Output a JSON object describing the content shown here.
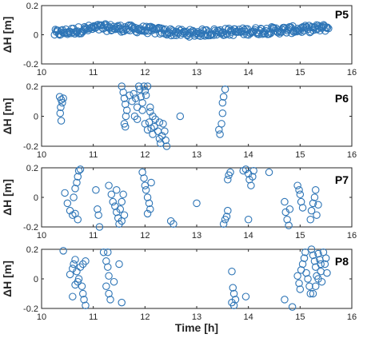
{
  "chart_data": {
    "type": "scatter",
    "xlabel": "Time [h]",
    "marker_color": "#2e75b6",
    "panels": [
      {
        "label": "P5",
        "ylabel": "ΔH [m]",
        "xlim": [
          10,
          16
        ],
        "ylim": [
          -0.2,
          0.2
        ],
        "xticks": [
          "10",
          "11",
          "12",
          "13",
          "14",
          "15",
          "16"
        ],
        "yticks": [
          "-0.2",
          "0",
          "0.2"
        ],
        "trend": [
          [
            10.25,
            0.01
          ],
          [
            10.5,
            0.02
          ],
          [
            10.8,
            0.035
          ],
          [
            11.0,
            0.045
          ],
          [
            11.2,
            0.05
          ],
          [
            11.5,
            0.045
          ],
          [
            11.8,
            0.04
          ],
          [
            12.0,
            0.035
          ],
          [
            12.3,
            0.025
          ],
          [
            12.6,
            0.015
          ],
          [
            12.9,
            0.01
          ],
          [
            13.2,
            0.015
          ],
          [
            13.5,
            0.02
          ],
          [
            13.8,
            0.02
          ],
          [
            14.1,
            0.025
          ],
          [
            14.5,
            0.03
          ],
          [
            14.9,
            0.035
          ],
          [
            15.2,
            0.04
          ],
          [
            15.55,
            0.05
          ]
        ],
        "noise": 0.025,
        "n_points": 320
      },
      {
        "label": "P6",
        "ylabel": "ΔH [m]",
        "xlim": [
          10,
          16
        ],
        "ylim": [
          -0.2,
          0.2
        ],
        "xticks": [
          "10",
          "11",
          "12",
          "13",
          "14",
          "15",
          "16"
        ],
        "yticks": [
          "-0.2",
          "0",
          "0.2"
        ],
        "points": [
          [
            10.35,
            0.13
          ],
          [
            10.38,
            0.11
          ],
          [
            10.4,
            0.09
          ],
          [
            10.37,
            0.06
          ],
          [
            10.36,
            0.02
          ],
          [
            10.38,
            -0.03
          ],
          [
            10.42,
            0.12
          ],
          [
            11.55,
            0.2
          ],
          [
            11.58,
            0.16
          ],
          [
            11.6,
            0.12
          ],
          [
            11.62,
            0.08
          ],
          [
            11.65,
            0.04
          ],
          [
            11.63,
            0.0
          ],
          [
            11.6,
            -0.05
          ],
          [
            11.62,
            -0.07
          ],
          [
            11.7,
            0.14
          ],
          [
            11.75,
            0.1
          ],
          [
            11.78,
            0.15
          ],
          [
            11.82,
            0.12
          ],
          [
            11.85,
            0.06
          ],
          [
            11.88,
            0.2
          ],
          [
            11.9,
            0.18
          ],
          [
            11.92,
            0.13
          ],
          [
            11.95,
            0.09
          ],
          [
            11.98,
            0.2
          ],
          [
            12.0,
            0.17
          ],
          [
            12.02,
            0.14
          ],
          [
            12.05,
            0.2
          ],
          [
            11.8,
            0.0
          ],
          [
            11.85,
            -0.02
          ],
          [
            11.95,
            0.04
          ],
          [
            12.0,
            -0.05
          ],
          [
            12.05,
            -0.09
          ],
          [
            12.08,
            -0.04
          ],
          [
            12.1,
            0.03
          ],
          [
            12.12,
            -0.08
          ],
          [
            12.15,
            -0.12
          ],
          [
            12.18,
            -0.07
          ],
          [
            12.2,
            -0.02
          ],
          [
            12.25,
            -0.1
          ],
          [
            12.28,
            -0.15
          ],
          [
            12.3,
            -0.18
          ],
          [
            12.33,
            -0.13
          ],
          [
            12.35,
            -0.05
          ],
          [
            12.38,
            -0.1
          ],
          [
            12.4,
            -0.16
          ],
          [
            12.42,
            -0.2
          ],
          [
            12.1,
            0.06
          ],
          [
            12.15,
            0.0
          ],
          [
            12.28,
            -0.04
          ],
          [
            12.68,
            0.0
          ],
          [
            13.43,
            -0.09
          ],
          [
            13.45,
            -0.12
          ],
          [
            13.48,
            -0.05
          ],
          [
            13.5,
            0.02
          ],
          [
            13.52,
            0.13
          ],
          [
            13.55,
            0.18
          ],
          [
            13.5,
            0.09
          ]
        ]
      },
      {
        "label": "P7",
        "ylabel": "ΔH [m]",
        "xlim": [
          10,
          16
        ],
        "ylim": [
          -0.2,
          0.2
        ],
        "xticks": [
          "10",
          "11",
          "12",
          "13",
          "14",
          "15",
          "16"
        ],
        "yticks": [
          "-0.2",
          "0",
          "0.2"
        ],
        "points": [
          [
            10.45,
            0.03
          ],
          [
            10.5,
            -0.04
          ],
          [
            10.55,
            -0.09
          ],
          [
            10.6,
            -0.12
          ],
          [
            10.62,
            0.0
          ],
          [
            10.65,
            0.06
          ],
          [
            10.68,
            0.1
          ],
          [
            10.7,
            0.14
          ],
          [
            10.72,
            0.18
          ],
          [
            10.75,
            0.19
          ],
          [
            10.7,
            -0.15
          ],
          [
            10.65,
            -0.11
          ],
          [
            11.05,
            0.05
          ],
          [
            11.08,
            -0.08
          ],
          [
            11.1,
            -0.12
          ],
          [
            11.12,
            -0.2
          ],
          [
            11.3,
            0.08
          ],
          [
            11.35,
            0.02
          ],
          [
            11.38,
            -0.03
          ],
          [
            11.42,
            -0.06
          ],
          [
            11.45,
            -0.1
          ],
          [
            11.48,
            -0.14
          ],
          [
            11.5,
            -0.18
          ],
          [
            11.52,
            -0.08
          ],
          [
            11.55,
            -0.03
          ],
          [
            11.58,
            0.02
          ],
          [
            11.45,
            0.05
          ],
          [
            11.55,
            -0.16
          ],
          [
            11.6,
            -0.12
          ],
          [
            11.95,
            0.17
          ],
          [
            11.98,
            0.13
          ],
          [
            12.0,
            0.08
          ],
          [
            12.02,
            0.05
          ],
          [
            12.05,
            0.0
          ],
          [
            12.08,
            -0.04
          ],
          [
            12.1,
            -0.08
          ],
          [
            12.05,
            -0.11
          ],
          [
            12.12,
            0.1
          ],
          [
            12.5,
            -0.16
          ],
          [
            12.55,
            -0.18
          ],
          [
            13.0,
            -0.04
          ],
          [
            13.52,
            -0.18
          ],
          [
            13.55,
            -0.15
          ],
          [
            13.58,
            -0.13
          ],
          [
            13.6,
            -0.09
          ],
          [
            13.6,
            0.12
          ],
          [
            13.62,
            0.15
          ],
          [
            13.65,
            0.17
          ],
          [
            13.9,
            0.18
          ],
          [
            13.95,
            0.19
          ],
          [
            14.0,
            0.16
          ],
          [
            14.02,
            0.12
          ],
          [
            14.05,
            0.08
          ],
          [
            14.08,
            0.14
          ],
          [
            14.1,
            0.18
          ],
          [
            14.0,
            -0.15
          ],
          [
            14.4,
            0.17
          ],
          [
            14.7,
            -0.03
          ],
          [
            14.72,
            -0.1
          ],
          [
            14.75,
            -0.15
          ],
          [
            14.78,
            -0.19
          ],
          [
            14.8,
            -0.08
          ],
          [
            14.95,
            0.08
          ],
          [
            14.98,
            0.05
          ],
          [
            15.0,
            0.02
          ],
          [
            15.02,
            -0.03
          ],
          [
            15.05,
            -0.07
          ],
          [
            15.2,
            -0.15
          ],
          [
            15.22,
            -0.09
          ],
          [
            15.25,
            -0.04
          ],
          [
            15.28,
            0.0
          ],
          [
            15.3,
            0.05
          ],
          [
            15.35,
            -0.05
          ],
          [
            15.32,
            -0.12
          ]
        ]
      },
      {
        "label": "P8",
        "ylabel": "ΔH [m]",
        "xlim": [
          10,
          16
        ],
        "ylim": [
          -0.2,
          0.2
        ],
        "xticks": [
          "10",
          "11",
          "12",
          "13",
          "14",
          "15",
          "16"
        ],
        "yticks": [
          "-0.2",
          "0",
          "0.2"
        ],
        "points": [
          [
            10.42,
            0.19
          ],
          [
            10.55,
            0.03
          ],
          [
            10.6,
            0.07
          ],
          [
            10.62,
            0.1
          ],
          [
            10.65,
            0.13
          ],
          [
            10.68,
            0.05
          ],
          [
            10.7,
            -0.02
          ],
          [
            10.72,
            0.0
          ],
          [
            10.75,
            0.08
          ],
          [
            10.78,
            -0.05
          ],
          [
            10.8,
            -0.1
          ],
          [
            10.82,
            -0.14
          ],
          [
            10.85,
            -0.18
          ],
          [
            10.8,
            0.1
          ],
          [
            10.85,
            0.12
          ],
          [
            10.6,
            -0.12
          ],
          [
            10.65,
            -0.04
          ],
          [
            11.2,
            0.18
          ],
          [
            11.25,
            0.12
          ],
          [
            11.28,
            0.08
          ],
          [
            11.3,
            0.02
          ],
          [
            11.25,
            -0.05
          ],
          [
            11.3,
            -0.1
          ],
          [
            11.33,
            -0.14
          ],
          [
            11.28,
            0.18
          ],
          [
            11.4,
            -0.02
          ],
          [
            11.5,
            0.1
          ],
          [
            11.55,
            -0.16
          ],
          [
            13.68,
            0.05
          ],
          [
            13.7,
            -0.06
          ],
          [
            13.72,
            -0.1
          ],
          [
            13.75,
            -0.14
          ],
          [
            13.72,
            -0.18
          ],
          [
            13.68,
            -0.16
          ],
          [
            13.95,
            -0.12
          ],
          [
            14.7,
            -0.14
          ],
          [
            14.85,
            -0.19
          ],
          [
            14.95,
            0.02
          ],
          [
            14.98,
            -0.03
          ],
          [
            15.0,
            -0.07
          ],
          [
            15.02,
            0.06
          ],
          [
            15.05,
            0.1
          ],
          [
            15.08,
            0.14
          ],
          [
            15.1,
            0.18
          ],
          [
            15.12,
            0.04
          ],
          [
            15.15,
            0.0
          ],
          [
            15.18,
            -0.05
          ],
          [
            15.2,
            -0.1
          ],
          [
            15.22,
            0.2
          ],
          [
            15.25,
            0.16
          ],
          [
            15.28,
            0.12
          ],
          [
            15.3,
            0.08
          ],
          [
            15.32,
            0.02
          ],
          [
            15.35,
            0.17
          ],
          [
            15.38,
            0.13
          ],
          [
            15.4,
            0.05
          ],
          [
            15.42,
            -0.02
          ],
          [
            15.45,
            0.18
          ],
          [
            15.48,
            0.1
          ],
          [
            15.5,
            0.14
          ],
          [
            15.52,
            0.04
          ],
          [
            15.3,
            -0.05
          ],
          [
            15.25,
            -0.1
          ],
          [
            15.35,
            0.0
          ],
          [
            15.4,
            0.1
          ]
        ]
      }
    ]
  }
}
